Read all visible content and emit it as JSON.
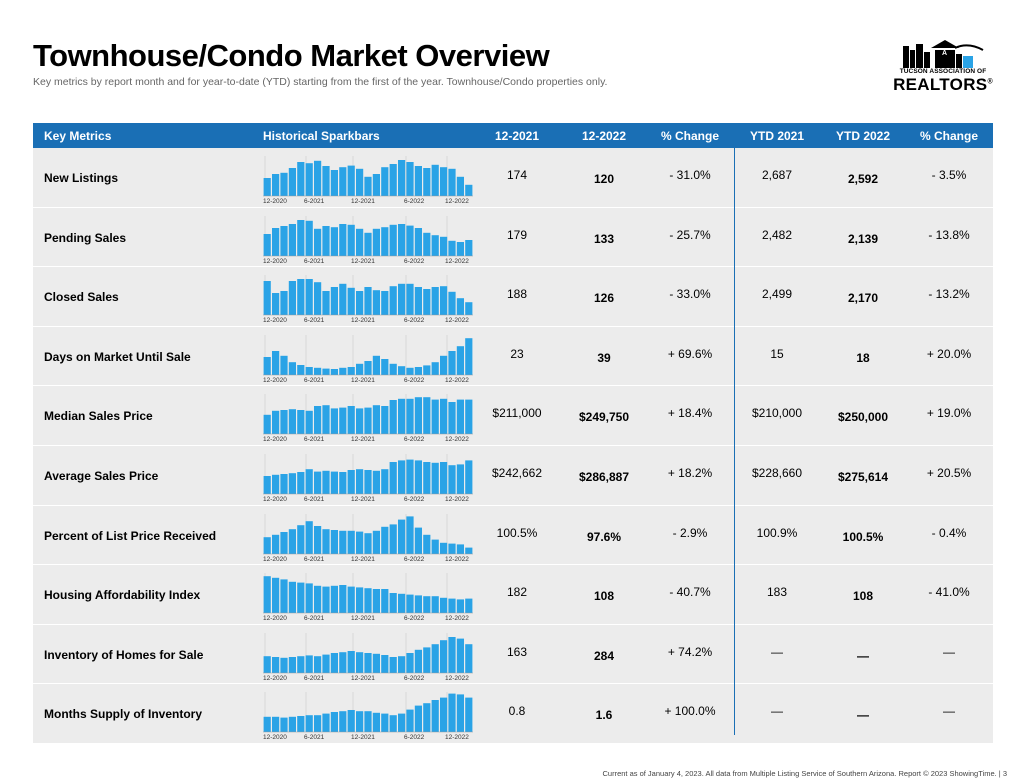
{
  "page": {
    "title": "Townhouse/Condo Market Overview",
    "subtitle": "Key metrics by report month and for year-to-date (YTD) starting from the first of the year. Townhouse/Condo properties only.",
    "footer": "Current as of January 4, 2023. All data from Multiple Listing Service of Southern Arizona. Report © 2023 ShowingTime.  |  3"
  },
  "logo": {
    "org": "TUCSON ASSOCIATION OF",
    "brand": "REALTORS",
    "mark": "®"
  },
  "colors": {
    "header_bg": "#1a6fb5",
    "bar": "#2aa3e6",
    "row_bg": "#ececec"
  },
  "headers": {
    "metric": "Key Metrics",
    "spark": "Historical Sparkbars",
    "m1": "12-2021",
    "m2": "12-2022",
    "chg1": "% Change",
    "y1": "YTD 2021",
    "y2": "YTD 2022",
    "chg2": "% Change"
  },
  "spark_axis": [
    "12-2020",
    "6-2021",
    "12-2021",
    "6-2022",
    "12-2022"
  ],
  "rows": [
    {
      "name": "New Listings",
      "m1": "174",
      "m2": "120",
      "chg1": "- 31.0%",
      "y1": "2,687",
      "y2": "2,592",
      "chg2": "- 3.5%",
      "bars": [
        0.45,
        0.55,
        0.58,
        0.7,
        0.85,
        0.82,
        0.88,
        0.75,
        0.65,
        0.72,
        0.76,
        0.68,
        0.48,
        0.55,
        0.72,
        0.8,
        0.9,
        0.85,
        0.75,
        0.7,
        0.78,
        0.72,
        0.68,
        0.48,
        0.28
      ]
    },
    {
      "name": "Pending Sales",
      "m1": "179",
      "m2": "133",
      "chg1": "- 25.7%",
      "y1": "2,482",
      "y2": "2,139",
      "chg2": "- 13.8%",
      "bars": [
        0.55,
        0.7,
        0.75,
        0.8,
        0.9,
        0.88,
        0.68,
        0.75,
        0.72,
        0.8,
        0.78,
        0.68,
        0.58,
        0.68,
        0.72,
        0.78,
        0.8,
        0.76,
        0.7,
        0.58,
        0.52,
        0.48,
        0.38,
        0.35,
        0.4
      ]
    },
    {
      "name": "Closed Sales",
      "m1": "188",
      "m2": "126",
      "chg1": "- 33.0%",
      "y1": "2,499",
      "y2": "2,170",
      "chg2": "- 13.2%",
      "bars": [
        0.85,
        0.55,
        0.6,
        0.85,
        0.9,
        0.9,
        0.82,
        0.6,
        0.7,
        0.78,
        0.68,
        0.6,
        0.7,
        0.62,
        0.6,
        0.72,
        0.78,
        0.78,
        0.7,
        0.65,
        0.7,
        0.72,
        0.58,
        0.42,
        0.32
      ]
    },
    {
      "name": "Days on Market Until Sale",
      "m1": "23",
      "m2": "39",
      "chg1": "+ 69.6%",
      "y1": "15",
      "y2": "18",
      "chg2": "+ 20.0%",
      "bars": [
        0.45,
        0.6,
        0.48,
        0.32,
        0.25,
        0.2,
        0.18,
        0.16,
        0.15,
        0.18,
        0.2,
        0.28,
        0.35,
        0.48,
        0.4,
        0.28,
        0.22,
        0.18,
        0.2,
        0.24,
        0.32,
        0.48,
        0.6,
        0.72,
        0.92
      ]
    },
    {
      "name": "Median Sales Price",
      "m1": "$211,000",
      "m2": "$249,750",
      "chg1": "+ 18.4%",
      "y1": "$210,000",
      "y2": "$250,000",
      "chg2": "+ 19.0%",
      "bars": [
        0.48,
        0.58,
        0.6,
        0.62,
        0.6,
        0.58,
        0.7,
        0.72,
        0.64,
        0.66,
        0.7,
        0.64,
        0.66,
        0.72,
        0.7,
        0.85,
        0.88,
        0.88,
        0.92,
        0.92,
        0.86,
        0.88,
        0.8,
        0.86,
        0.86
      ]
    },
    {
      "name": "Average Sales Price",
      "m1": "$242,662",
      "m2": "$286,887",
      "chg1": "+ 18.2%",
      "y1": "$228,660",
      "y2": "$275,614",
      "chg2": "+ 20.5%",
      "bars": [
        0.45,
        0.48,
        0.5,
        0.52,
        0.55,
        0.62,
        0.56,
        0.58,
        0.56,
        0.55,
        0.6,
        0.62,
        0.6,
        0.58,
        0.62,
        0.8,
        0.84,
        0.86,
        0.84,
        0.8,
        0.78,
        0.8,
        0.72,
        0.74,
        0.84
      ]
    },
    {
      "name": "Percent of List Price Received",
      "m1": "100.5%",
      "m2": "97.6%",
      "chg1": "- 2.9%",
      "y1": "100.9%",
      "y2": "100.5%",
      "chg2": "- 0.4%",
      "bars": [
        0.42,
        0.48,
        0.55,
        0.62,
        0.72,
        0.82,
        0.7,
        0.62,
        0.6,
        0.58,
        0.58,
        0.56,
        0.52,
        0.58,
        0.68,
        0.74,
        0.86,
        0.94,
        0.66,
        0.48,
        0.36,
        0.28,
        0.26,
        0.24,
        0.16
      ]
    },
    {
      "name": "Housing Affordability Index",
      "m1": "182",
      "m2": "108",
      "chg1": "- 40.7%",
      "y1": "183",
      "y2": "108",
      "chg2": "- 41.0%",
      "bars": [
        0.92,
        0.88,
        0.84,
        0.78,
        0.76,
        0.74,
        0.68,
        0.66,
        0.68,
        0.7,
        0.66,
        0.64,
        0.62,
        0.6,
        0.6,
        0.5,
        0.48,
        0.46,
        0.44,
        0.42,
        0.42,
        0.38,
        0.36,
        0.34,
        0.36
      ]
    },
    {
      "name": "Inventory of Homes for Sale",
      "m1": "163",
      "m2": "284",
      "chg1": "+ 74.2%",
      "y1": "—",
      "y2": "—",
      "chg2": "—",
      "bars": [
        0.42,
        0.4,
        0.38,
        0.4,
        0.42,
        0.44,
        0.42,
        0.46,
        0.5,
        0.52,
        0.55,
        0.52,
        0.5,
        0.48,
        0.45,
        0.4,
        0.42,
        0.5,
        0.58,
        0.64,
        0.72,
        0.82,
        0.9,
        0.86,
        0.72
      ]
    },
    {
      "name": "Months Supply of Inventory",
      "m1": "0.8",
      "m2": "1.6",
      "chg1": "+ 100.0%",
      "y1": "—",
      "y2": "—",
      "chg2": "—",
      "bars": [
        0.38,
        0.38,
        0.36,
        0.38,
        0.4,
        0.42,
        0.42,
        0.46,
        0.5,
        0.52,
        0.55,
        0.52,
        0.52,
        0.48,
        0.46,
        0.42,
        0.46,
        0.56,
        0.66,
        0.72,
        0.8,
        0.86,
        0.96,
        0.94,
        0.86
      ]
    }
  ]
}
